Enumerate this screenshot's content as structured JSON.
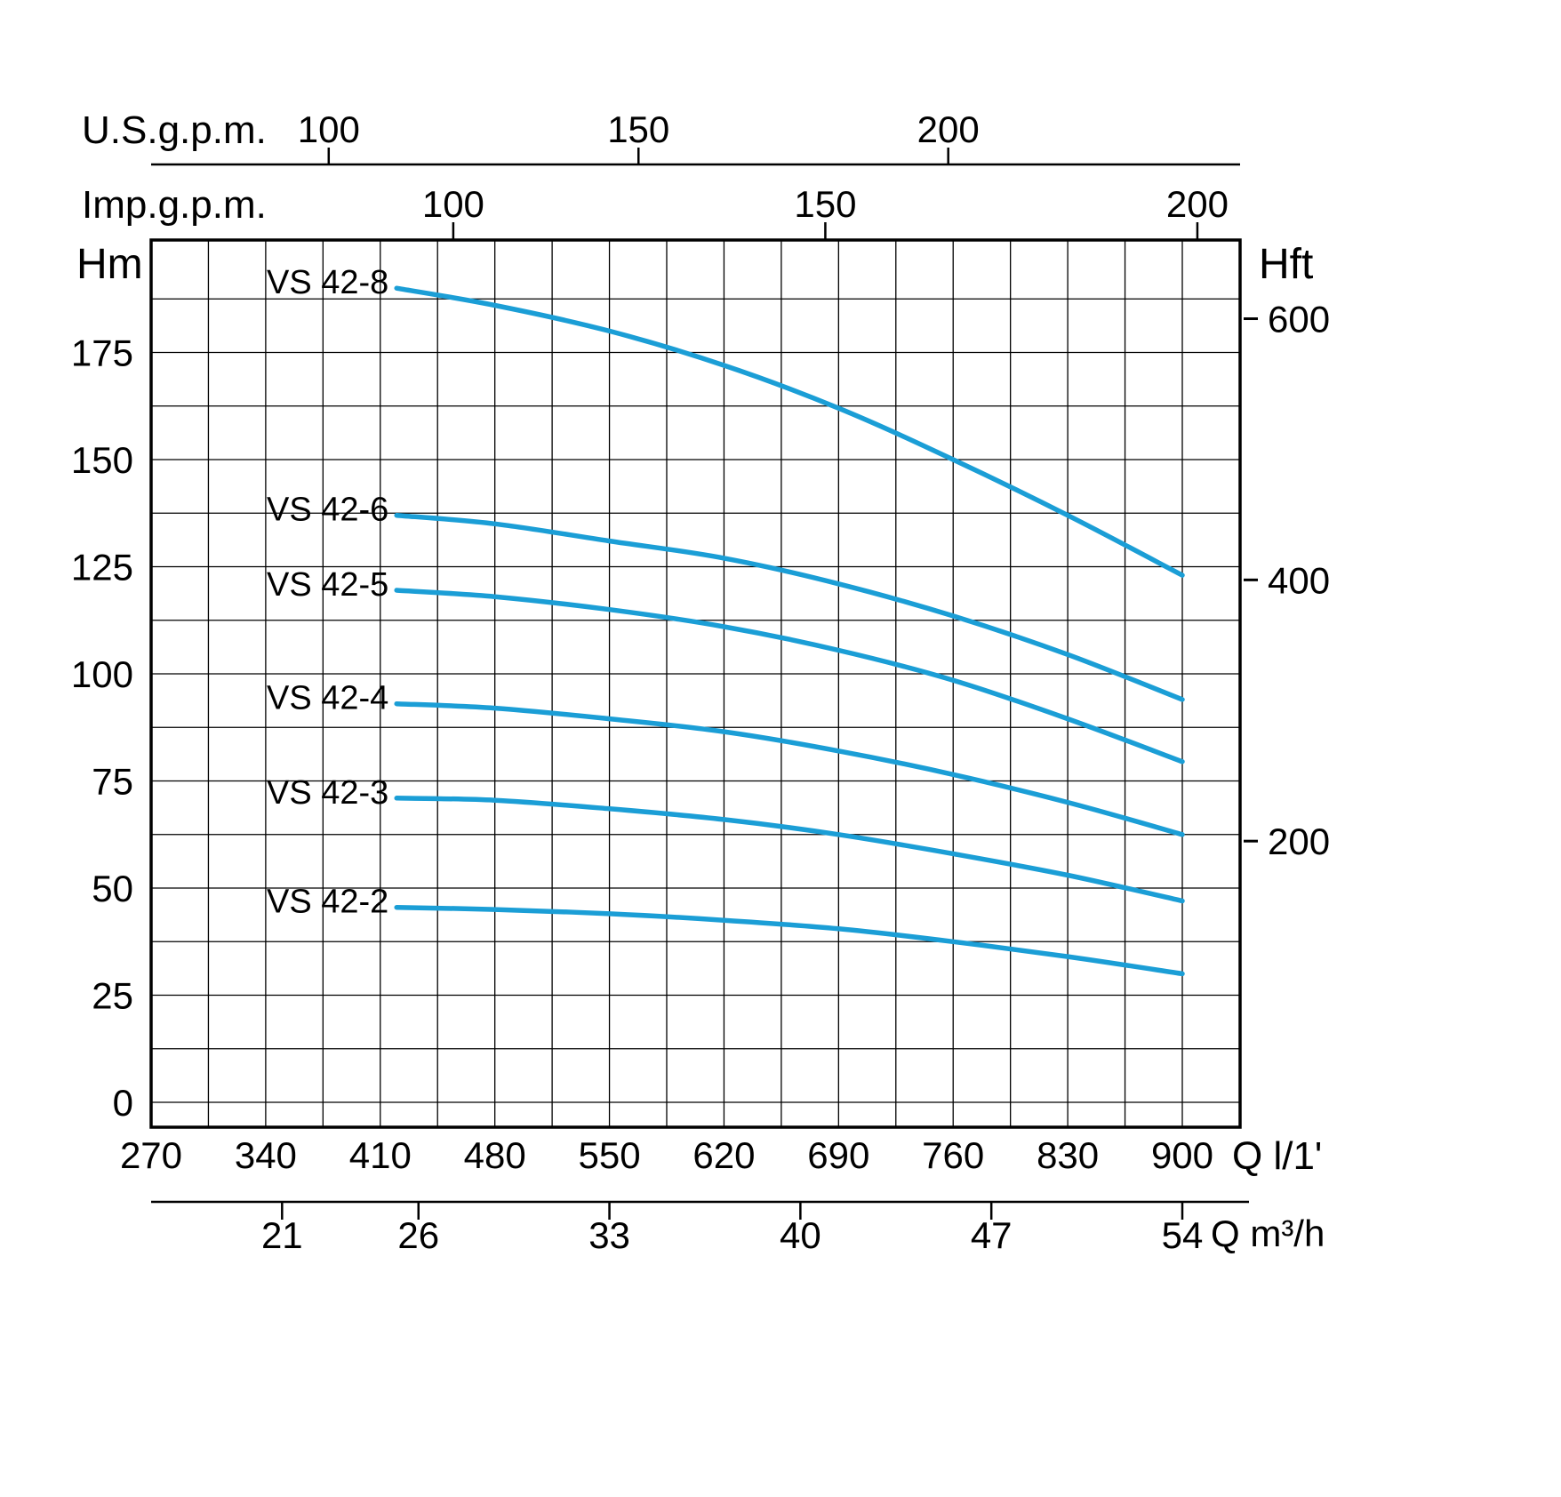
{
  "chart_data": {
    "type": "line",
    "line_color": "#1b9ed6",
    "grid": true,
    "axes": {
      "us_gpm": {
        "label": "U.S.g.p.m.",
        "ticks": [
          100,
          150,
          200
        ]
      },
      "imp_gpm": {
        "label": "Imp.g.p.m.",
        "ticks": [
          100,
          150,
          200
        ]
      },
      "head_m": {
        "label": "Hm",
        "ticks": [
          0,
          25,
          50,
          75,
          100,
          125,
          150,
          175
        ],
        "range": [
          0,
          200
        ]
      },
      "head_ft": {
        "label": "Hft",
        "ticks": [
          200,
          400,
          600
        ]
      },
      "flow_l_min": {
        "label": "Q l/1'",
        "ticks": [
          270,
          340,
          410,
          480,
          550,
          620,
          690,
          760,
          830,
          900
        ],
        "range": [
          270,
          935
        ]
      },
      "flow_m3_h": {
        "label": "Q m³/h",
        "ticks": [
          21,
          26,
          33,
          40,
          47,
          54
        ]
      }
    },
    "x_flow_l_min": [
      420,
      480,
      550,
      620,
      690,
      760,
      830,
      900
    ],
    "series": [
      {
        "name": "VS 42-8",
        "values": [
          190,
          186,
          180,
          172,
          162,
          150,
          137,
          123
        ]
      },
      {
        "name": "VS 42-6",
        "values": [
          137,
          135,
          131,
          127,
          121,
          113.5,
          104.5,
          94
        ]
      },
      {
        "name": "VS 42-5",
        "values": [
          119.5,
          118,
          115,
          111,
          105.5,
          98.5,
          89.5,
          79.5
        ]
      },
      {
        "name": "VS 42-4",
        "values": [
          93,
          92,
          89.5,
          86.5,
          82,
          76.5,
          70,
          62.5
        ]
      },
      {
        "name": "VS 42-3",
        "values": [
          71,
          70.5,
          68.5,
          66,
          62.5,
          58,
          53,
          47
        ]
      },
      {
        "name": "VS 42-2",
        "values": [
          45.5,
          45,
          44,
          42.5,
          40.5,
          37.5,
          34,
          30
        ]
      }
    ]
  }
}
